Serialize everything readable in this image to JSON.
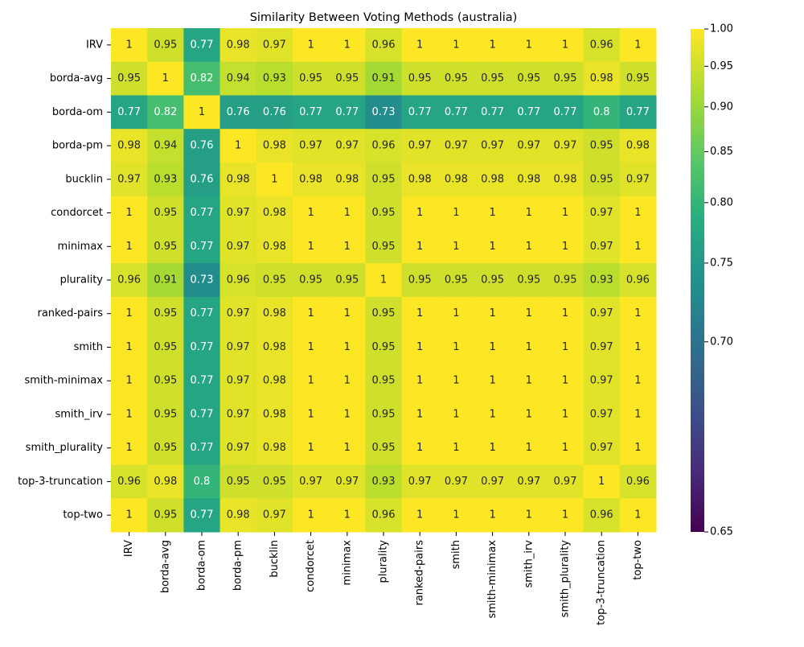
{
  "chart_data": {
    "type": "heatmap",
    "title": "Similarity Between Voting Methods (australia)",
    "x_categories": [
      "IRV",
      "borda-avg",
      "borda-om",
      "borda-pm",
      "bucklin",
      "condorcet",
      "minimax",
      "plurality",
      "ranked-pairs",
      "smith",
      "smith-minimax",
      "smith_irv",
      "smith_plurality",
      "top-3-truncation",
      "top-two"
    ],
    "y_categories": [
      "IRV",
      "borda-avg",
      "borda-om",
      "borda-pm",
      "bucklin",
      "condorcet",
      "minimax",
      "plurality",
      "ranked-pairs",
      "smith",
      "smith-minimax",
      "smith_irv",
      "smith_plurality",
      "top-3-truncation",
      "top-two"
    ],
    "values": [
      [
        1,
        0.95,
        0.77,
        0.98,
        0.97,
        1,
        1,
        0.96,
        1,
        1,
        1,
        1,
        1,
        0.96,
        1
      ],
      [
        0.95,
        1,
        0.82,
        0.94,
        0.93,
        0.95,
        0.95,
        0.91,
        0.95,
        0.95,
        0.95,
        0.95,
        0.95,
        0.98,
        0.95
      ],
      [
        0.77,
        0.82,
        1,
        0.76,
        0.76,
        0.77,
        0.77,
        0.73,
        0.77,
        0.77,
        0.77,
        0.77,
        0.77,
        0.8,
        0.77
      ],
      [
        0.98,
        0.94,
        0.76,
        1,
        0.98,
        0.97,
        0.97,
        0.96,
        0.97,
        0.97,
        0.97,
        0.97,
        0.97,
        0.95,
        0.98
      ],
      [
        0.97,
        0.93,
        0.76,
        0.98,
        1,
        0.98,
        0.98,
        0.95,
        0.98,
        0.98,
        0.98,
        0.98,
        0.98,
        0.95,
        0.97
      ],
      [
        1,
        0.95,
        0.77,
        0.97,
        0.98,
        1,
        1,
        0.95,
        1,
        1,
        1,
        1,
        1,
        0.97,
        1
      ],
      [
        1,
        0.95,
        0.77,
        0.97,
        0.98,
        1,
        1,
        0.95,
        1,
        1,
        1,
        1,
        1,
        0.97,
        1
      ],
      [
        0.96,
        0.91,
        0.73,
        0.96,
        0.95,
        0.95,
        0.95,
        1,
        0.95,
        0.95,
        0.95,
        0.95,
        0.95,
        0.93,
        0.96
      ],
      [
        1,
        0.95,
        0.77,
        0.97,
        0.98,
        1,
        1,
        0.95,
        1,
        1,
        1,
        1,
        1,
        0.97,
        1
      ],
      [
        1,
        0.95,
        0.77,
        0.97,
        0.98,
        1,
        1,
        0.95,
        1,
        1,
        1,
        1,
        1,
        0.97,
        1
      ],
      [
        1,
        0.95,
        0.77,
        0.97,
        0.98,
        1,
        1,
        0.95,
        1,
        1,
        1,
        1,
        1,
        0.97,
        1
      ],
      [
        1,
        0.95,
        0.77,
        0.97,
        0.98,
        1,
        1,
        0.95,
        1,
        1,
        1,
        1,
        1,
        0.97,
        1
      ],
      [
        1,
        0.95,
        0.77,
        0.97,
        0.98,
        1,
        1,
        0.95,
        1,
        1,
        1,
        1,
        1,
        0.97,
        1
      ],
      [
        0.96,
        0.98,
        0.8,
        0.95,
        0.95,
        0.97,
        0.97,
        0.93,
        0.97,
        0.97,
        0.97,
        0.97,
        0.97,
        1,
        0.96
      ],
      [
        1,
        0.95,
        0.77,
        0.98,
        0.97,
        1,
        1,
        0.96,
        1,
        1,
        1,
        1,
        1,
        0.96,
        1
      ]
    ],
    "colormap": "viridis",
    "norm_gamma": 0.5,
    "zlim": [
      0.65,
      1
    ],
    "zticks": [
      0.65,
      {
        "value": 0.7,
        "label": "0.70"
      },
      0.75,
      {
        "value": 0.8,
        "label": "0.80"
      },
      0.85,
      {
        "value": 0.9,
        "label": "0.90"
      },
      0.95,
      {
        "value": 1,
        "label": "1.00"
      }
    ]
  }
}
